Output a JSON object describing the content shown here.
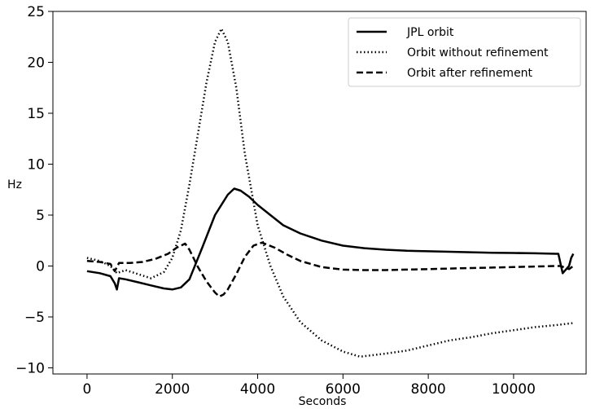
{
  "chart_data": {
    "type": "line",
    "title": "",
    "xlabel": "Seconds",
    "ylabel": "Hz",
    "xlim": [
      -800,
      11700
    ],
    "ylim": [
      -10.6,
      25
    ],
    "xticks": [
      0,
      2000,
      4000,
      6000,
      8000,
      10000
    ],
    "xtick_labels": [
      "0",
      "2000",
      "4000",
      "6000",
      "8000",
      "10000"
    ],
    "yticks": [
      -10,
      -5,
      0,
      5,
      10,
      15,
      20,
      25
    ],
    "ytick_labels": [
      "−10",
      "−5",
      "0",
      "5",
      "10",
      "15",
      "20",
      "25"
    ],
    "grid": false,
    "legend_position": "top-right",
    "series": [
      {
        "name": "JPL orbit",
        "style": "solid",
        "color": "#000000",
        "x": [
          0,
          300,
          550,
          650,
          700,
          750,
          900,
          1200,
          1500,
          1800,
          2000,
          2200,
          2400,
          2700,
          3000,
          3300,
          3450,
          3600,
          3800,
          4000,
          4300,
          4600,
          5000,
          5500,
          6000,
          6500,
          7000,
          7500,
          8000,
          8500,
          9000,
          9500,
          10000,
          10500,
          11000,
          11050,
          11150,
          11300,
          11350,
          11400
        ],
        "y": [
          -0.5,
          -0.7,
          -1.0,
          -1.7,
          -2.3,
          -1.2,
          -1.3,
          -1.6,
          -1.9,
          -2.2,
          -2.3,
          -2.1,
          -1.3,
          1.8,
          5.0,
          7.0,
          7.6,
          7.4,
          6.8,
          6.0,
          5.0,
          4.0,
          3.2,
          2.5,
          2.0,
          1.75,
          1.6,
          1.5,
          1.45,
          1.4,
          1.35,
          1.3,
          1.28,
          1.25,
          1.2,
          1.2,
          -0.7,
          0.0,
          0.8,
          1.2
        ]
      },
      {
        "name": "Orbit without refinement",
        "style": "dotted",
        "color": "#000000",
        "x": [
          0,
          300,
          550,
          700,
          900,
          1200,
          1500,
          1800,
          2000,
          2200,
          2400,
          2600,
          2800,
          3000,
          3150,
          3300,
          3500,
          3700,
          4000,
          4300,
          4600,
          5000,
          5500,
          6000,
          6400,
          7000,
          7500,
          8000,
          8500,
          9000,
          9500,
          10000,
          10500,
          11000,
          11400
        ],
        "y": [
          0.8,
          0.5,
          0.0,
          -0.7,
          -0.4,
          -0.8,
          -1.2,
          -0.6,
          0.8,
          3.5,
          8.0,
          13.0,
          18.0,
          22.0,
          23.3,
          22.0,
          17.5,
          11.0,
          4.0,
          0.0,
          -3.0,
          -5.5,
          -7.3,
          -8.4,
          -8.9,
          -8.6,
          -8.3,
          -7.8,
          -7.3,
          -7.0,
          -6.6,
          -6.3,
          -6.0,
          -5.8,
          -5.6
        ]
      },
      {
        "name": "Orbit after refinement",
        "style": "dashed",
        "color": "#000000",
        "x": [
          0,
          300,
          550,
          650,
          750,
          1000,
          1300,
          1600,
          1900,
          2100,
          2300,
          2400,
          2600,
          2800,
          3000,
          3100,
          3200,
          3300,
          3500,
          3700,
          3900,
          4100,
          4400,
          4700,
          5000,
          5500,
          6000,
          6500,
          7000,
          7500,
          8000,
          8500,
          9000,
          9500,
          10000,
          10500,
          11000,
          11100,
          11300,
          11400
        ],
        "y": [
          0.5,
          0.4,
          0.2,
          -0.5,
          0.3,
          0.3,
          0.4,
          0.7,
          1.2,
          1.8,
          2.2,
          1.6,
          -0.1,
          -1.5,
          -2.6,
          -3.0,
          -2.8,
          -2.3,
          -0.8,
          0.9,
          2.0,
          2.3,
          1.8,
          1.1,
          0.5,
          -0.1,
          -0.35,
          -0.4,
          -0.4,
          -0.35,
          -0.3,
          -0.25,
          -0.2,
          -0.15,
          -0.1,
          -0.05,
          0.0,
          0.0,
          -0.3,
          0.0
        ]
      }
    ]
  }
}
